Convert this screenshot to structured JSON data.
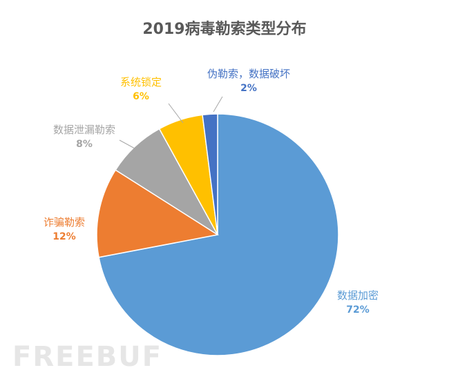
{
  "watermark": "FREEBUF",
  "chart_data": {
    "type": "pie",
    "title": "2019病毒勒索类型分布",
    "slices": [
      {
        "label": "数据加密",
        "value": 72,
        "pct_label": "72%",
        "color": "#5B9BD5"
      },
      {
        "label": "诈骗勒索",
        "value": 12,
        "pct_label": "12%",
        "color": "#ED7D31"
      },
      {
        "label": "数据泄漏勒索",
        "value": 8,
        "pct_label": "8%",
        "color": "#A5A5A5"
      },
      {
        "label": "系统锁定",
        "value": 6,
        "pct_label": "6%",
        "color": "#FFC000"
      },
      {
        "label": "伪勒索，数据破坏",
        "value": 2,
        "pct_label": "2%",
        "color": "#4472C4"
      }
    ]
  }
}
